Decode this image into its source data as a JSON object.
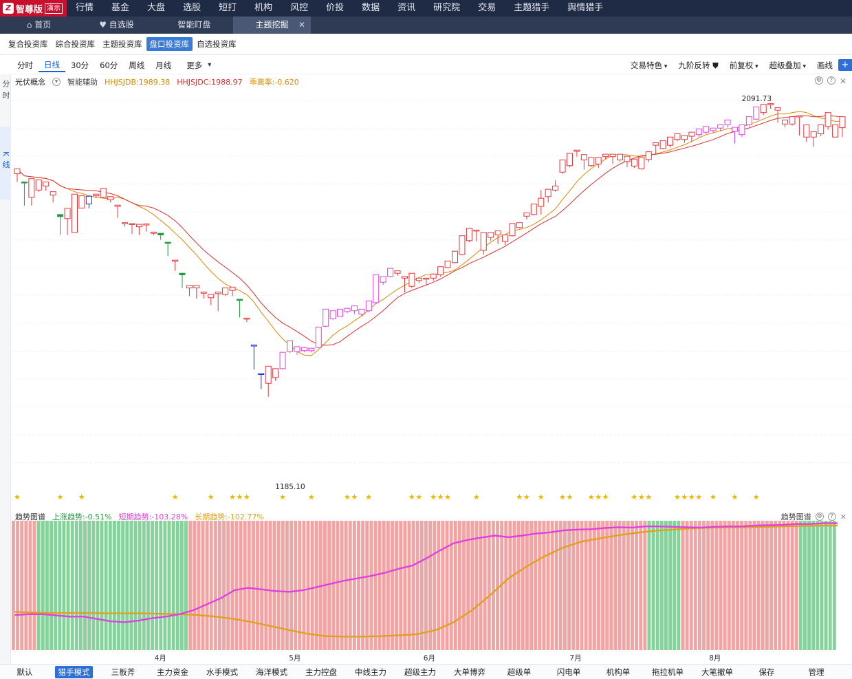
{
  "app": {
    "logo_text": "智尊版",
    "demo_badge": "演示"
  },
  "top_menu": [
    "行情",
    "基金",
    "大盘",
    "选股",
    "短打",
    "机构",
    "风控",
    "价投",
    "数据",
    "资讯",
    "研究院",
    "交易",
    "主题猎手",
    "舆情猎手"
  ],
  "tabs": [
    {
      "icon": "home-icon",
      "label": "首页"
    },
    {
      "icon": "heart-icon",
      "label": "自选股"
    },
    {
      "icon": "",
      "label": "智能盯盘"
    },
    {
      "icon": "",
      "label": "主题挖掘",
      "active": true,
      "close": "✕"
    }
  ],
  "sub_tabs": [
    "复合投资库",
    "综合投资库",
    "主题投资库",
    "盘口投资库",
    "自选投资库"
  ],
  "sub_tab_active": 3,
  "periods": [
    "分时",
    "日线",
    "30分",
    "60分",
    "周线",
    "月线",
    "更多"
  ],
  "period_active": 1,
  "tools": [
    "交易特色",
    "九阶反转",
    "前复权",
    "超级叠加",
    "画线"
  ],
  "side_tabs": [
    {
      "label": "分时"
    },
    {
      "label": "K线",
      "active": true
    }
  ],
  "info": {
    "name": "光伏概念",
    "assist": "智能辅助",
    "db": "HHJSJDB:1989.38",
    "dc": "HHJSJDC:1988.97",
    "rate": "乖离率:-0.620"
  },
  "colors": {
    "up": "#e8343a",
    "down": "#1f9d3a",
    "blue": "#1029e6",
    "magenta": "#e040e0",
    "orange": "#e0a020",
    "star": "#f0b400",
    "bg_red": "#f4a3a3",
    "bg_green": "#85d39a"
  },
  "chart_data": {
    "type": "candlestick",
    "max_label": "2091.73",
    "min_label": "1185.10",
    "candles": [
      [
        1920,
        1932,
        1908,
        1900
      ],
      [
        1900,
        1898,
        1850,
        1842
      ],
      [
        1862,
        1908,
        1850,
        1842
      ],
      [
        1880,
        1905,
        1888,
        1876
      ],
      [
        1890,
        1900,
        1888,
        1878
      ],
      [
        1868,
        1876,
        1810,
        1850
      ],
      [
        1820,
        1815,
        1775,
        1770
      ],
      [
        1810,
        1835,
        1778,
        1770
      ],
      [
        1776,
        1870,
        1728,
        1830
      ],
      [
        1836,
        1866,
        1790,
        1835
      ],
      [
        1846,
        1865,
        1858,
        1835
      ],
      [
        1866,
        1870,
        1860,
        1860
      ],
      [
        1862,
        1884,
        1862,
        1860
      ],
      [
        1856,
        1864,
        1845,
        1850
      ],
      [
        1840,
        1843,
        1815,
        1812
      ],
      [
        1798,
        1800,
        1797,
        1790
      ],
      [
        1796,
        1798,
        1773,
        1772
      ],
      [
        1790,
        1796,
        1768,
        1770
      ],
      [
        1796,
        1797,
        1780,
        1778
      ],
      [
        1774,
        1777,
        1770,
        1769
      ],
      [
        1774,
        1770,
        1758,
        1758
      ],
      [
        1752,
        1750,
        1718,
        1718
      ],
      [
        1708,
        1708,
        1690,
        1682
      ],
      [
        1676,
        1672,
        1640,
        1640
      ],
      [
        1640,
        1646,
        1630,
        1620
      ],
      [
        1640,
        1646,
        1617,
        1614
      ],
      [
        1627,
        1630,
        1622,
        1614
      ],
      [
        1616,
        1624,
        1605,
        1598
      ],
      [
        1626,
        1630,
        1593,
        1583
      ],
      [
        1624,
        1640,
        1636,
        1620
      ],
      [
        1634,
        1642,
        1621,
        1620
      ],
      [
        1612,
        1610,
        1570,
        1568
      ],
      [
        1566,
        1566,
        1563,
        1556
      ],
      [
        1500,
        1500,
        1440,
        1440
      ],
      [
        1430,
        1430,
        1392,
        1392
      ],
      [
        1406,
        1448,
        1383,
        1373
      ],
      [
        1420,
        1442,
        1420,
        1412
      ],
      [
        1442,
        1482,
        1479,
        1440
      ],
      [
        1484,
        1510,
        1490,
        1480
      ],
      [
        1484,
        1496,
        1484,
        1476
      ],
      [
        1486,
        1494,
        1496,
        1482
      ],
      [
        1486,
        1492,
        1493,
        1482
      ],
      [
        1494,
        1544,
        1534,
        1492
      ],
      [
        1546,
        1588,
        1564,
        1544
      ],
      [
        1564,
        1584,
        1576,
        1562
      ],
      [
        1570,
        1588,
        1581,
        1570
      ],
      [
        1582,
        1590,
        1585,
        1578
      ],
      [
        1584,
        1596,
        1577,
        1576
      ],
      [
        1576,
        1588,
        1587,
        1570
      ],
      [
        1584,
        1608,
        1603,
        1580
      ],
      [
        1604,
        1672,
        1651,
        1600
      ],
      [
        1654,
        1668,
        1662,
        1648
      ],
      [
        1668,
        1688,
        1674,
        1666
      ],
      [
        1676,
        1682,
        1678,
        1670
      ],
      [
        1664,
        1668,
        1632,
        1630
      ],
      [
        1644,
        1676,
        1668,
        1640
      ],
      [
        1658,
        1664,
        1660,
        1652
      ],
      [
        1662,
        1664,
        1656,
        1648
      ],
      [
        1664,
        1674,
        1676,
        1658
      ],
      [
        1672,
        1692,
        1689,
        1668
      ],
      [
        1690,
        1706,
        1698,
        1688
      ],
      [
        1702,
        1730,
        1721,
        1700
      ],
      [
        1722,
        1768,
        1760,
        1720
      ],
      [
        1756,
        1786,
        1776,
        1752
      ],
      [
        1780,
        1782,
        1764,
        1754
      ],
      [
        1732,
        1776,
        1764,
        1722
      ],
      [
        1764,
        1776,
        1774,
        1756
      ],
      [
        1770,
        1780,
        1756,
        1748
      ],
      [
        1754,
        1770,
        1764,
        1745
      ],
      [
        1768,
        1798,
        1792,
        1766
      ],
      [
        1788,
        1800,
        1798,
        1786
      ],
      [
        1816,
        1824,
        1816,
        1808
      ],
      [
        1820,
        1846,
        1839,
        1818
      ],
      [
        1840,
        1860,
        1880,
        1820
      ],
      [
        1864,
        1882,
        1878,
        1850
      ],
      [
        1880,
        1890,
        1904,
        1876
      ],
      [
        1924,
        1954,
        1943,
        1920
      ],
      [
        1940,
        1970,
        1960,
        1936
      ],
      [
        1975,
        1978,
        1964,
        1962
      ],
      [
        1954,
        1967,
        1929,
        1930
      ],
      [
        1940,
        1960,
        1948,
        1936
      ],
      [
        1944,
        1960,
        1957,
        1934
      ],
      [
        1962,
        1968,
        1966,
        1956
      ],
      [
        1962,
        1968,
        1958,
        1944
      ],
      [
        1954,
        1968,
        1962,
        1950
      ],
      [
        1950,
        1963,
        1939,
        1936
      ],
      [
        1939,
        1956,
        1938,
        1934
      ],
      [
        1932,
        1960,
        1935,
        1930
      ],
      [
        1955,
        1974,
        1970,
        1948
      ],
      [
        1990,
        1996,
        1970,
        1966
      ],
      [
        1982,
        2001,
        1988,
        1980
      ],
      [
        1990,
        2010,
        1998,
        1985
      ],
      [
        2004,
        2018,
        2003,
        2000
      ],
      [
        2004,
        2014,
        2012,
        1996
      ],
      [
        2012,
        2022,
        2005,
        1998
      ],
      [
        2016,
        2030,
        2022,
        2010
      ],
      [
        2022,
        2036,
        2026,
        2018
      ],
      [
        2026,
        2032,
        2027,
        2020
      ],
      [
        2032,
        2040,
        2031,
        2024
      ],
      [
        2040,
        2052,
        2040,
        2034
      ],
      [
        2024,
        2034,
        1996,
        1994
      ],
      [
        2016,
        2040,
        2036,
        2010
      ],
      [
        2040,
        2060,
        2054,
        2036
      ],
      [
        2054,
        2084,
        2078,
        2052
      ],
      [
        2070,
        2090,
        2090,
        2064
      ],
      [
        2090,
        2092,
        2088,
        2080
      ],
      [
        2076,
        2082,
        2048,
        2045
      ],
      [
        2042,
        2052,
        2045,
        2034
      ],
      [
        2042,
        2060,
        2060,
        2038
      ],
      [
        2061,
        2062,
        2017,
        2014
      ],
      [
        2010,
        2040,
        2035,
        1998
      ],
      [
        2010,
        2023,
        2013,
        1986
      ],
      [
        2018,
        2040,
        2036,
        2012
      ],
      [
        2036,
        2070,
        2066,
        2028
      ],
      [
        2010,
        2040,
        2036,
        2010
      ],
      [
        2033,
        2060,
        2032,
        2010
      ]
    ],
    "ma_red_start": 1900,
    "stars": [
      0,
      6,
      9,
      22,
      27,
      30,
      31,
      32,
      37,
      41,
      46,
      47,
      49,
      55,
      56,
      58,
      59,
      60,
      64,
      70,
      71,
      73,
      76,
      77,
      80,
      81,
      82,
      86,
      87,
      88,
      92,
      93,
      94,
      95,
      97,
      100,
      103
    ]
  },
  "indicator": {
    "title": "趋势图谱",
    "up_trend": "上涨趋势:-0.51%",
    "short_trend": "短期趋势:-103.28%",
    "long_trend": "长期趋势:-102.77%",
    "right_title": "趋势图谱",
    "bg_bars": "rrrrrrggggggggggggggggggggggggggggggggggggrrrrrrrrrrrrrrrrrrrrrrrrrrrrrrrrrrrrrrrrrrrrrrrrrrrrrrrrrrrrrrrrrrrrrrrrrrrrrrrrrrrrrrrrrrrrrrrrrrrrrrrrrrrrrggggggggrrrrrrrrrrrrrrrrrrrrrrrrrrrrggggggggg",
    "short_values": [
      88,
      90,
      90,
      87,
      84,
      84,
      78,
      72,
      70,
      74,
      80,
      84,
      90,
      100,
      115,
      130,
      150,
      156,
      152,
      148,
      146,
      150,
      158,
      166,
      174,
      180,
      186,
      194,
      204,
      212,
      230,
      250,
      268,
      276,
      282,
      287,
      283,
      287,
      292,
      295,
      300,
      302,
      303,
      306,
      308,
      307,
      310,
      310,
      309,
      308,
      307,
      309,
      310,
      310,
      312,
      313,
      314,
      316,
      316,
      318,
      318
    ],
    "long_values": [
      96,
      94,
      93,
      93,
      93,
      92,
      92,
      92,
      91,
      90,
      88,
      84,
      78,
      70,
      60,
      50,
      41,
      35,
      34,
      34,
      35,
      37,
      40,
      50,
      70,
      100,
      138,
      180,
      210,
      236,
      257,
      272,
      280,
      288,
      294,
      299,
      302,
      305,
      307,
      308,
      308,
      309,
      310,
      311,
      312,
      312
    ]
  },
  "months": [
    {
      "label": "4月",
      "pos": 0.17
    },
    {
      "label": "5月",
      "pos": 0.33
    },
    {
      "label": "6月",
      "pos": 0.49
    },
    {
      "label": "7月",
      "pos": 0.664
    },
    {
      "label": "8月",
      "pos": 0.83
    }
  ],
  "bottom_tabs": [
    "默认",
    "猎手模式",
    "三板斧",
    "主力资金",
    "水手模式",
    "海洋模式",
    "主力控盘",
    "中线主力",
    "超级主力",
    "大单博弈",
    "超级单",
    "闪电单",
    "机构单",
    "拖拉机单",
    "大笔撤单",
    "保存",
    "管理"
  ],
  "bottom_active": 1
}
